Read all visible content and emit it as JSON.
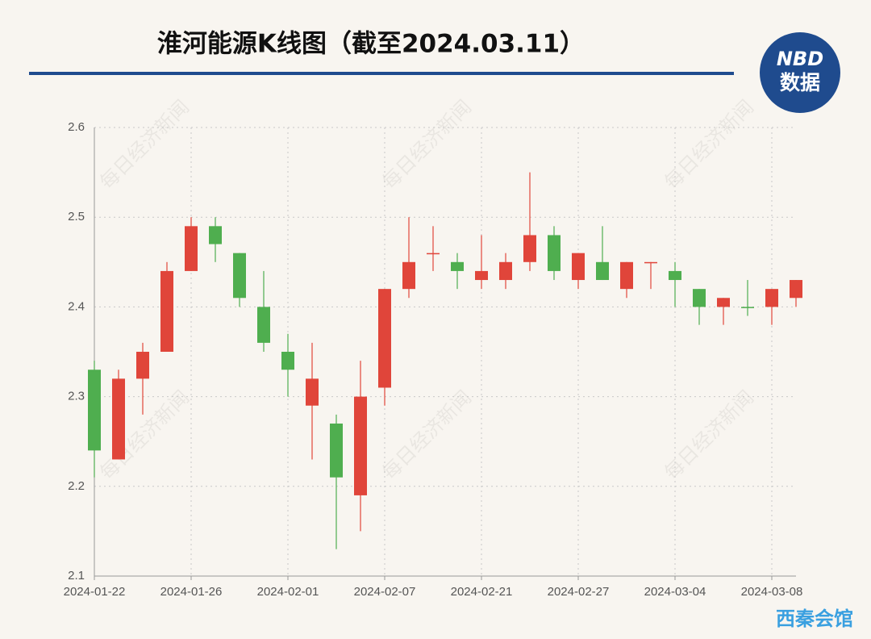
{
  "chart_data": {
    "type": "candlestick",
    "title": "淮河能源K线图（截至2024.03.11）",
    "categories": [
      "2024-01-22",
      null,
      null,
      null,
      "2024-01-26",
      null,
      null,
      null,
      "2024-02-01",
      null,
      null,
      null,
      "2024-02-07",
      null,
      null,
      null,
      "2024-02-21",
      null,
      null,
      null,
      "2024-02-27",
      null,
      null,
      null,
      "2024-03-04",
      null,
      null,
      null,
      "2024-03-08",
      null
    ],
    "open": [
      2.33,
      2.23,
      2.32,
      2.35,
      2.44,
      2.49,
      2.46,
      2.4,
      2.35,
      2.29,
      2.27,
      2.19,
      2.31,
      2.42,
      2.46,
      2.45,
      2.43,
      2.43,
      2.45,
      2.48,
      2.43,
      2.45,
      2.42,
      2.45,
      2.44,
      2.42,
      2.4,
      2.4,
      2.4,
      2.41
    ],
    "high": [
      2.34,
      2.33,
      2.36,
      2.45,
      2.5,
      2.5,
      2.46,
      2.44,
      2.37,
      2.36,
      2.28,
      2.34,
      2.42,
      2.5,
      2.49,
      2.46,
      2.48,
      2.46,
      2.55,
      2.49,
      2.46,
      2.49,
      2.45,
      2.45,
      2.45,
      2.42,
      2.41,
      2.43,
      2.42,
      2.43
    ],
    "low": [
      2.21,
      2.23,
      2.28,
      2.35,
      2.44,
      2.45,
      2.4,
      2.35,
      2.3,
      2.23,
      2.13,
      2.15,
      2.29,
      2.41,
      2.44,
      2.42,
      2.42,
      2.42,
      2.44,
      2.43,
      2.42,
      2.43,
      2.41,
      2.42,
      2.4,
      2.38,
      2.38,
      2.39,
      2.38,
      2.4
    ],
    "close": [
      2.24,
      2.32,
      2.35,
      2.44,
      2.49,
      2.47,
      2.41,
      2.36,
      2.33,
      2.32,
      2.21,
      2.3,
      2.42,
      2.45,
      2.46,
      2.44,
      2.44,
      2.45,
      2.48,
      2.44,
      2.46,
      2.43,
      2.45,
      2.45,
      2.43,
      2.4,
      2.41,
      2.4,
      2.42,
      2.43
    ],
    "up_color": "#e0453a",
    "down_color": "#4fae4f",
    "ylim": [
      2.1,
      2.6
    ],
    "yticks": [
      2.1,
      2.2,
      2.3,
      2.4,
      2.5,
      2.6
    ],
    "grid": true
  },
  "watermark": "每日经济新闻",
  "logo": {
    "line1": "NBD",
    "line2": "数据"
  },
  "footer": "西秦会馆"
}
